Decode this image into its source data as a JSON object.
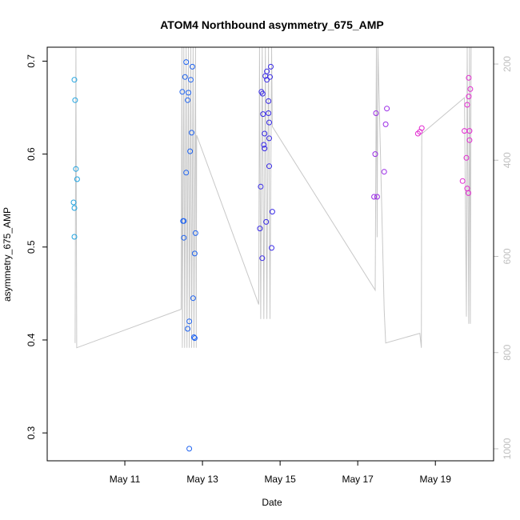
{
  "chart_data": {
    "type": "scatter",
    "title": "ATOM4 Northbound asymmetry_675_AMP",
    "xlabel": "Date",
    "ylabel": "asymmetry_675_AMP",
    "x_ticks": [
      "May 11",
      "May 13",
      "May 15",
      "May 17",
      "May 19"
    ],
    "x_tick_values": [
      11,
      13,
      15,
      17,
      19
    ],
    "xlim": [
      9.0,
      20.5
    ],
    "ylim": [
      0.27,
      0.715
    ],
    "y_ticks": [
      0.3,
      0.4,
      0.5,
      0.6,
      0.7
    ],
    "y_tick_labels": [
      "0.3",
      "0.4",
      "0.5",
      "0.6",
      "0.7"
    ],
    "y2_ticks": [
      200,
      400,
      600,
      800,
      1000
    ],
    "y2_tick_labels": [
      "200",
      "400",
      "600",
      "800",
      "1000"
    ],
    "y2lim": [
      1025,
      165
    ],
    "y2_color": "#bfbfbf",
    "marker": "open-circle",
    "color_scale": [
      "#1fa3e0",
      "#1f63f0",
      "#3a2be8",
      "#9a2ae6",
      "#e22ad0"
    ],
    "series": [
      {
        "points": [
          [
            9.7,
            0.68
          ],
          [
            9.72,
            0.658
          ],
          [
            9.74,
            0.584
          ],
          [
            9.77,
            0.573
          ],
          [
            9.68,
            0.548
          ],
          [
            9.7,
            0.542
          ],
          [
            9.7,
            0.511
          ]
        ]
      },
      {
        "points": [
          [
            12.48,
            0.667
          ],
          [
            12.5,
            0.528
          ],
          [
            12.52,
            0.528
          ],
          [
            12.52,
            0.51
          ],
          [
            12.55,
            0.683
          ],
          [
            12.58,
            0.699
          ],
          [
            12.58,
            0.58
          ],
          [
            12.62,
            0.658
          ],
          [
            12.64,
            0.666
          ],
          [
            12.68,
            0.603
          ],
          [
            12.7,
            0.68
          ],
          [
            12.72,
            0.623
          ],
          [
            12.74,
            0.694
          ],
          [
            12.76,
            0.445
          ],
          [
            12.78,
            0.403
          ],
          [
            12.8,
            0.402
          ],
          [
            12.82,
            0.515
          ],
          [
            12.8,
            0.493
          ],
          [
            12.66,
            0.42
          ],
          [
            12.62,
            0.412
          ],
          [
            12.66,
            0.283
          ]
        ]
      },
      {
        "points": [
          [
            14.48,
            0.52
          ],
          [
            14.5,
            0.565
          ],
          [
            14.52,
            0.667
          ],
          [
            14.54,
            0.488
          ],
          [
            14.55,
            0.665
          ],
          [
            14.56,
            0.643
          ],
          [
            14.58,
            0.61
          ],
          [
            14.6,
            0.606
          ],
          [
            14.6,
            0.622
          ],
          [
            14.62,
            0.684
          ],
          [
            14.64,
            0.527
          ],
          [
            14.66,
            0.689
          ],
          [
            14.66,
            0.68
          ],
          [
            14.7,
            0.657
          ],
          [
            14.7,
            0.644
          ],
          [
            14.72,
            0.634
          ],
          [
            14.72,
            0.617
          ],
          [
            14.72,
            0.587
          ],
          [
            14.74,
            0.683
          ],
          [
            14.76,
            0.694
          ],
          [
            14.78,
            0.499
          ],
          [
            14.8,
            0.538
          ]
        ]
      },
      {
        "points": [
          [
            17.42,
            0.554
          ],
          [
            17.45,
            0.6
          ],
          [
            17.47,
            0.644
          ],
          [
            17.5,
            0.554
          ],
          [
            17.68,
            0.581
          ],
          [
            17.72,
            0.632
          ],
          [
            17.75,
            0.649
          ]
        ]
      },
      {
        "points": [
          [
            18.55,
            0.622
          ],
          [
            18.6,
            0.624
          ],
          [
            18.65,
            0.628
          ],
          [
            19.7,
            0.571
          ],
          [
            19.75,
            0.625
          ],
          [
            19.8,
            0.596
          ],
          [
            19.82,
            0.653
          ],
          [
            19.82,
            0.563
          ],
          [
            19.85,
            0.558
          ],
          [
            19.86,
            0.662
          ],
          [
            19.86,
            0.682
          ],
          [
            19.88,
            0.615
          ],
          [
            19.88,
            0.625
          ],
          [
            19.9,
            0.67
          ]
        ]
      }
    ],
    "secondary_line": {
      "color": "#c8c8c8",
      "axis": "right",
      "points": [
        [
          9.72,
          780
        ],
        [
          9.74,
          160
        ],
        [
          9.76,
          790
        ],
        [
          12.45,
          710
        ],
        [
          12.47,
          160
        ],
        [
          12.48,
          790
        ],
        [
          12.52,
          160
        ],
        [
          12.54,
          790
        ],
        [
          12.58,
          160
        ],
        [
          12.6,
          790
        ],
        [
          12.64,
          160
        ],
        [
          12.66,
          790
        ],
        [
          12.7,
          160
        ],
        [
          12.72,
          790
        ],
        [
          12.76,
          160
        ],
        [
          12.78,
          790
        ],
        [
          12.82,
          160
        ],
        [
          12.84,
          790
        ],
        [
          12.85,
          348
        ],
        [
          14.45,
          700
        ],
        [
          14.47,
          160
        ],
        [
          14.5,
          730
        ],
        [
          14.54,
          160
        ],
        [
          14.58,
          730
        ],
        [
          14.62,
          160
        ],
        [
          14.66,
          730
        ],
        [
          14.7,
          160
        ],
        [
          14.74,
          730
        ],
        [
          14.78,
          160
        ],
        [
          14.8,
          330
        ],
        [
          17.45,
          670
        ],
        [
          17.48,
          160
        ],
        [
          17.5,
          560
        ],
        [
          17.52,
          160
        ],
        [
          17.68,
          710
        ],
        [
          17.72,
          780
        ],
        [
          18.6,
          760
        ],
        [
          18.64,
          790
        ],
        [
          18.65,
          345
        ],
        [
          19.75,
          270
        ],
        [
          19.8,
          725
        ],
        [
          19.82,
          160
        ],
        [
          19.86,
          740
        ],
        [
          19.88,
          160
        ],
        [
          19.9,
          740
        ],
        [
          19.92,
          160
        ]
      ]
    }
  }
}
